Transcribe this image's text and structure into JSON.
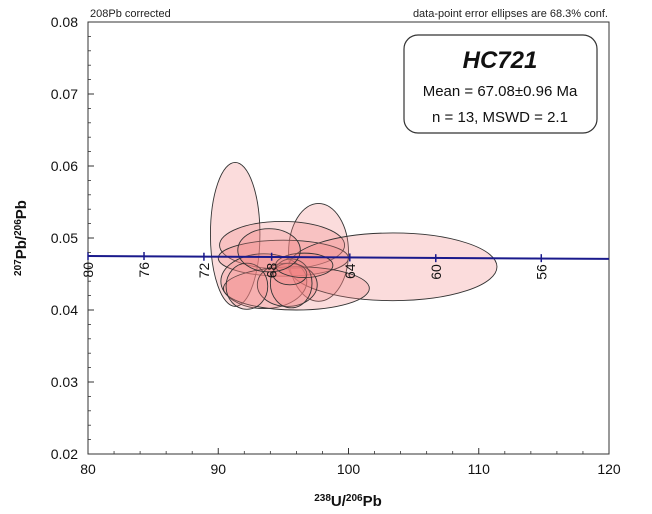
{
  "header": {
    "left_note": "208Pb corrected",
    "right_note": "data-point error ellipses are 68.3% conf."
  },
  "info_box": {
    "title": "HC721",
    "mean_line": "Mean = 67.08±0.96 Ma",
    "stats_line": "n = 13, MSWD = 2.1"
  },
  "chart_data": {
    "type": "scatter",
    "subtype": "Tera-Wasserburg concordia with error ellipses",
    "xlabel": "238U/206Pb",
    "ylabel": "207Pb/206Pb",
    "xlim": [
      80,
      120
    ],
    "ylim": [
      0.02,
      0.08
    ],
    "x_ticks": [
      80,
      90,
      100,
      110,
      120
    ],
    "x_tick_labels": [
      "80",
      "90",
      "100",
      "110",
      "120"
    ],
    "y_ticks": [
      0.02,
      0.03,
      0.04,
      0.05,
      0.06,
      0.07,
      0.08
    ],
    "y_tick_labels": [
      "0.02",
      "0.03",
      "0.04",
      "0.05",
      "0.06",
      "0.07",
      "0.08"
    ],
    "grid": false,
    "ellipse_fill": "#f08080",
    "ellipse_stroke": "#333333",
    "concordia_color": "#1a1a8c",
    "concordia": [
      {
        "x": 80.0,
        "y": 0.0475
      },
      {
        "x": 120.0,
        "y": 0.0471
      }
    ],
    "age_marks": [
      {
        "x": 80.0,
        "y": 0.0475,
        "label": "80"
      },
      {
        "x": 84.3,
        "y": 0.0475,
        "label": "76"
      },
      {
        "x": 88.9,
        "y": 0.0474,
        "label": "72"
      },
      {
        "x": 94.1,
        "y": 0.0474,
        "label": "68"
      },
      {
        "x": 100.1,
        "y": 0.0473,
        "label": "64"
      },
      {
        "x": 106.7,
        "y": 0.0472,
        "label": "60"
      },
      {
        "x": 114.8,
        "y": 0.0472,
        "label": "56"
      }
    ],
    "ellipses": [
      {
        "cx": 91.3,
        "cy": 0.0505,
        "rx": 1.9,
        "ry": 0.01
      },
      {
        "cx": 97.7,
        "cy": 0.048,
        "rx": 2.3,
        "ry": 0.0068
      },
      {
        "cx": 94.9,
        "cy": 0.049,
        "rx": 4.8,
        "ry": 0.0033
      },
      {
        "cx": 95.0,
        "cy": 0.0472,
        "rx": 5.0,
        "ry": 0.0025
      },
      {
        "cx": 103.4,
        "cy": 0.046,
        "rx": 8.0,
        "ry": 0.0047
      },
      {
        "cx": 93.5,
        "cy": 0.044,
        "rx": 3.3,
        "ry": 0.0038
      },
      {
        "cx": 96.0,
        "cy": 0.043,
        "rx": 5.6,
        "ry": 0.003
      },
      {
        "cx": 95.3,
        "cy": 0.0435,
        "rx": 2.3,
        "ry": 0.003
      },
      {
        "cx": 95.6,
        "cy": 0.0437,
        "rx": 1.6,
        "ry": 0.0034
      },
      {
        "cx": 95.5,
        "cy": 0.045,
        "rx": 1.3,
        "ry": 0.0015
      },
      {
        "cx": 96.6,
        "cy": 0.0462,
        "rx": 2.2,
        "ry": 0.0017
      },
      {
        "cx": 92.2,
        "cy": 0.0433,
        "rx": 1.6,
        "ry": 0.0032
      },
      {
        "cx": 93.9,
        "cy": 0.0483,
        "rx": 2.4,
        "ry": 0.003
      }
    ]
  }
}
